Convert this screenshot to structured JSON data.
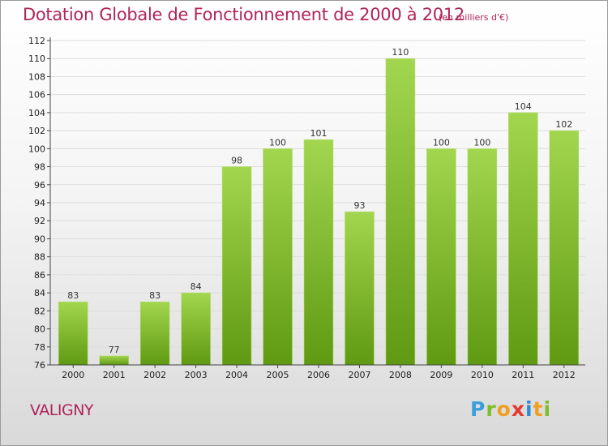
{
  "title": "Dotation Globale de Fonctionnement de 2000 à 2012",
  "unit": "(en milliers d'€)",
  "commune": "VALIGNY",
  "logo": {
    "letters": [
      "P",
      "r",
      "o",
      "x",
      "i",
      "t",
      "i"
    ],
    "colors": [
      "#3b9fdc",
      "#7cbf2a",
      "#f0a020",
      "#e23b2e",
      "#2e8bd6",
      "#f0a020",
      "#7cbf2a"
    ],
    "text": "Proxiti"
  },
  "colors": {
    "bar_top": "#a2d64e",
    "bar_bottom": "#5f9a12",
    "title": "#b0245a",
    "grid": "#dddddd"
  },
  "chart_data": {
    "type": "bar",
    "categories": [
      "2000",
      "2001",
      "2002",
      "2003",
      "2004",
      "2005",
      "2006",
      "2007",
      "2008",
      "2009",
      "2010",
      "2011",
      "2012"
    ],
    "values": [
      83,
      77,
      83,
      84,
      98,
      100,
      101,
      93,
      110,
      100,
      100,
      104,
      102
    ],
    "yticks": [
      76,
      78,
      80,
      82,
      84,
      86,
      88,
      90,
      92,
      94,
      96,
      98,
      100,
      102,
      104,
      106,
      108,
      110,
      112
    ],
    "ylim": [
      76,
      112
    ],
    "grid": true
  }
}
